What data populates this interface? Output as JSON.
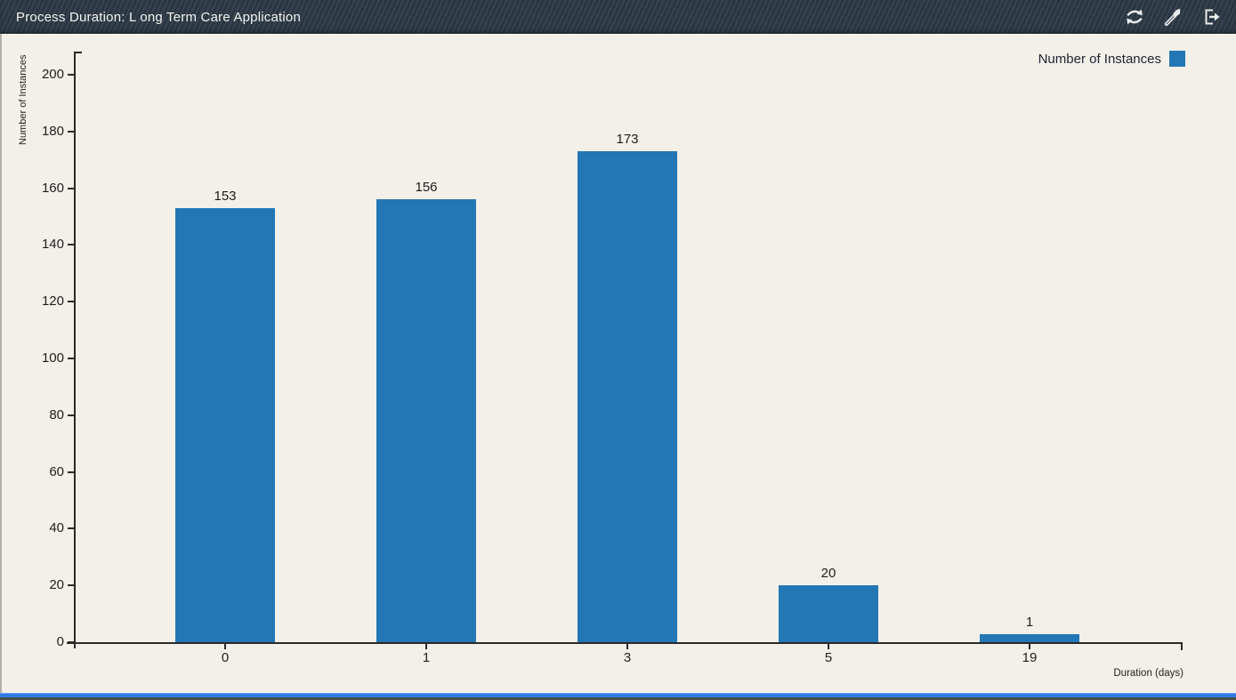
{
  "titlebar": {
    "title": "Process Duration: L ong Term Care Application",
    "tools": [
      {
        "name": "refresh"
      },
      {
        "name": "eyedropper"
      },
      {
        "name": "export"
      }
    ]
  },
  "legend": {
    "label": "Number of Instances",
    "color": "#2277b4"
  },
  "chart_data": {
    "type": "bar",
    "title": "Process Duration: L ong Term Care Application",
    "categories": [
      "0",
      "1",
      "3",
      "5",
      "19"
    ],
    "series": [
      {
        "name": "Number of Instances",
        "values": [
          153,
          156,
          173,
          20,
          1
        ]
      }
    ],
    "xlabel": "Duration (days)",
    "ylabel": "Number of Instances",
    "ylim": [
      0,
      200
    ],
    "ytick_step": 20,
    "yticks": [
      0,
      20,
      40,
      60,
      80,
      100,
      120,
      140,
      160,
      180,
      200
    ],
    "bar_color": "#2277b4",
    "grid": false,
    "legend_position": "top-right",
    "value_labels_shown": true
  },
  "colors": {
    "titlebar_bg": "#2c3945",
    "chart_bg": "#f3f0e9",
    "bar": "#2277b4",
    "axis": "#2a2a2a",
    "bottom_strip": "#2f7ce0"
  }
}
